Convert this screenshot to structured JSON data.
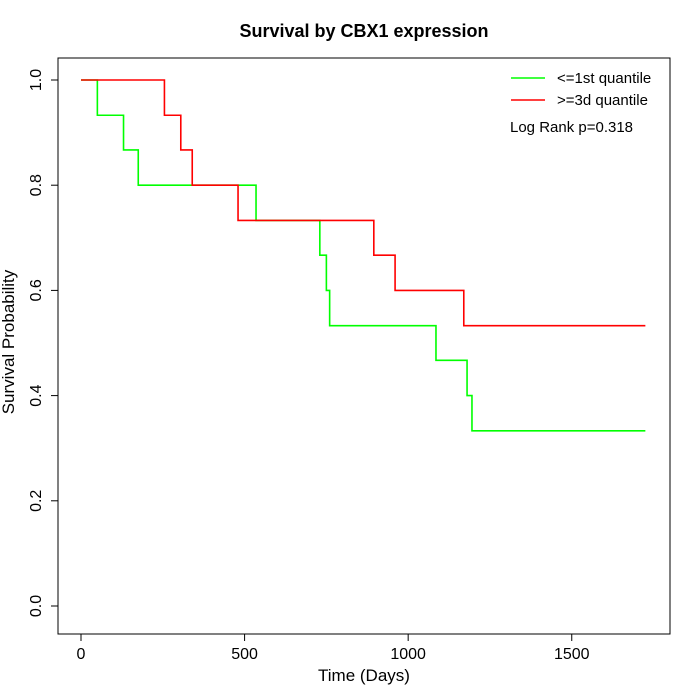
{
  "chart_data": {
    "type": "line",
    "step": true,
    "title": "Survival by CBX1 expression",
    "xlabel": "Time (Days)",
    "ylabel": "Survival Probability",
    "xlim": [
      0,
      1730
    ],
    "ylim": [
      0,
      1
    ],
    "x_ticks": [
      0,
      500,
      1000,
      1500
    ],
    "y_ticks": [
      0.0,
      0.2,
      0.4,
      0.6,
      0.8,
      1.0
    ],
    "x_tick_labels": [
      "0",
      "500",
      "1000",
      "1500"
    ],
    "y_tick_labels": [
      "0.0",
      "0.2",
      "0.4",
      "0.6",
      "0.8",
      "1.0"
    ],
    "grid": false,
    "legend_position": "top-right",
    "annotation": "Log Rank p=0.318",
    "series": [
      {
        "name": "<=1st quantile",
        "color": "#00ff00",
        "x": [
          0,
          50,
          130,
          175,
          535,
          730,
          750,
          760,
          1085,
          1180,
          1195,
          1725
        ],
        "y": [
          1.0,
          0.933,
          0.867,
          0.8,
          0.733,
          0.667,
          0.6,
          0.533,
          0.467,
          0.4,
          0.333,
          0.333
        ]
      },
      {
        "name": ">=3d quantile",
        "color": "#ff0000",
        "x": [
          0,
          255,
          305,
          340,
          480,
          895,
          960,
          1170,
          1725
        ],
        "y": [
          1.0,
          0.933,
          0.867,
          0.8,
          0.733,
          0.667,
          0.6,
          0.533,
          0.533
        ]
      }
    ]
  }
}
